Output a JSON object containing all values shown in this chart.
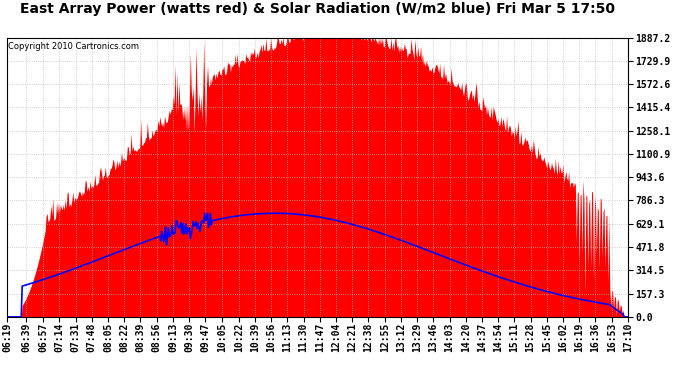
{
  "title": "East Array Power (watts red) & Solar Radiation (W/m2 blue) Fri Mar 5 17:50",
  "copyright": "Copyright 2010 Cartronics.com",
  "y_max": 1887.2,
  "y_min": 0.0,
  "y_ticks": [
    0.0,
    157.3,
    314.5,
    471.8,
    629.1,
    786.3,
    943.6,
    1100.9,
    1258.1,
    1415.4,
    1572.6,
    1729.9,
    1887.2
  ],
  "x_labels": [
    "06:19",
    "06:39",
    "06:57",
    "07:14",
    "07:31",
    "07:48",
    "08:05",
    "08:22",
    "08:39",
    "08:56",
    "09:13",
    "09:30",
    "09:47",
    "10:05",
    "10:22",
    "10:39",
    "10:56",
    "11:13",
    "11:30",
    "11:47",
    "12:04",
    "12:21",
    "12:38",
    "12:55",
    "13:12",
    "13:29",
    "13:46",
    "14:03",
    "14:20",
    "14:37",
    "14:54",
    "15:11",
    "15:28",
    "15:45",
    "16:02",
    "16:19",
    "16:36",
    "16:53",
    "17:10"
  ],
  "background_color": "#ffffff",
  "plot_bg_color": "#ffffff",
  "grid_color": "#bbbbbb",
  "title_fontsize": 10,
  "tick_fontsize": 7
}
